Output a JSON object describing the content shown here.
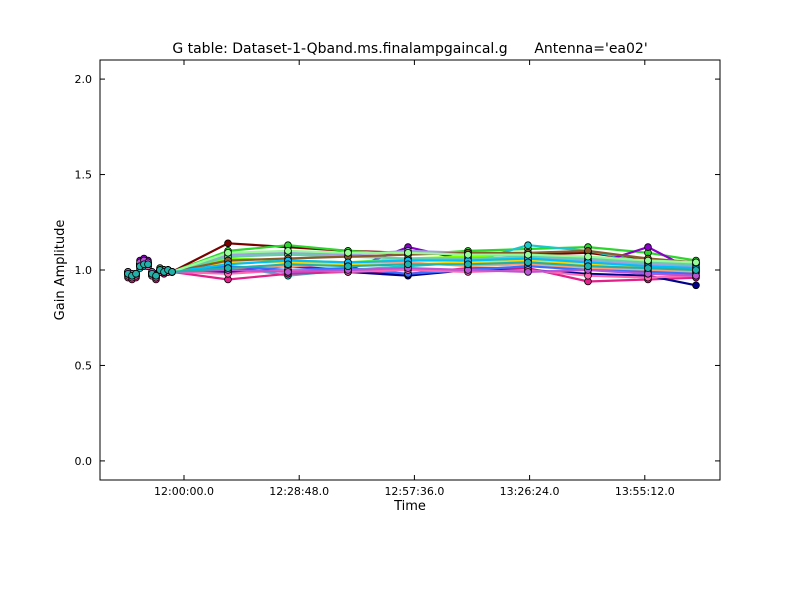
{
  "chart_data": {
    "type": "line",
    "title": "G table: Dataset-1-Qband.ms.finalampgaincal.g      Antenna='ea02'",
    "xlabel": "Time",
    "ylabel": "Gain Amplitude",
    "xlim": [
      "11:39:00.0",
      "14:14:00.0"
    ],
    "ylim": [
      -0.1,
      2.1
    ],
    "x_ticks": [
      "12:00:00.0",
      "12:28:48.0",
      "12:57:36.0",
      "13:26:24.0",
      "13:55:12.0"
    ],
    "y_ticks": [
      "0.0",
      "0.5",
      "1.0",
      "1.5",
      "2.0"
    ],
    "grid": false,
    "legend": "none",
    "x": [
      "11:46:00",
      "11:47:00",
      "11:48:00",
      "11:49:00",
      "11:50:00",
      "11:51:00",
      "11:52:00",
      "11:53:00",
      "11:54:00",
      "11:55:00",
      "11:56:00",
      "11:57:00",
      "12:11:00",
      "12:26:00",
      "12:41:00",
      "12:56:00",
      "13:11:00",
      "13:26:00",
      "13:41:00",
      "13:56:00",
      "14:08:00"
    ],
    "series": [
      {
        "color": "#7a0000",
        "values": [
          0.99,
          0.97,
          0.98,
          1.03,
          1.05,
          1.04,
          0.98,
          0.97,
          1.0,
          0.99,
          1.0,
          0.99,
          1.14,
          1.12,
          1.1,
          1.09,
          1.08,
          1.08,
          1.09,
          1.05,
          1.03
        ]
      },
      {
        "color": "#2cd62c",
        "values": [
          0.98,
          0.97,
          0.97,
          1.02,
          1.03,
          1.03,
          0.99,
          0.98,
          1.01,
          1.0,
          1.0,
          0.99,
          1.1,
          1.13,
          1.1,
          1.08,
          1.1,
          1.11,
          1.12,
          1.09,
          1.05
        ]
      },
      {
        "color": "#19c8c8",
        "values": [
          0.97,
          0.96,
          0.97,
          1.01,
          1.02,
          1.02,
          0.97,
          0.96,
          0.99,
          0.99,
          0.99,
          0.99,
          1.02,
          0.97,
          1.0,
          1.02,
          1.04,
          1.13,
          1.1,
          1.04,
          1.01
        ]
      },
      {
        "color": "#e0218a",
        "values": [
          0.96,
          0.95,
          0.96,
          1.02,
          1.04,
          1.03,
          0.97,
          0.95,
          0.99,
          0.98,
          0.99,
          0.99,
          0.95,
          0.98,
          0.99,
          0.98,
          1.01,
          1.01,
          0.94,
          0.95,
          0.96
        ]
      },
      {
        "color": "#8a00c8",
        "values": [
          0.98,
          0.97,
          0.98,
          1.05,
          1.06,
          1.05,
          0.99,
          0.97,
          1.0,
          1.0,
          1.0,
          0.99,
          1.0,
          1.02,
          1.0,
          1.12,
          1.05,
          1.05,
          1.02,
          1.12,
          0.99
        ]
      },
      {
        "color": "#00008a",
        "values": [
          0.99,
          0.97,
          0.98,
          1.02,
          1.04,
          1.04,
          0.98,
          0.96,
          1.0,
          1.0,
          1.0,
          0.99,
          0.99,
          1.0,
          0.99,
          0.97,
          1.0,
          1.0,
          0.98,
          0.97,
          0.92
        ]
      },
      {
        "color": "#7fff00",
        "values": [
          0.99,
          0.98,
          0.98,
          1.03,
          1.04,
          1.03,
          0.98,
          0.97,
          1.0,
          1.0,
          1.0,
          0.99,
          1.06,
          1.05,
          1.04,
          1.06,
          1.07,
          1.06,
          1.05,
          1.02,
          1.0
        ]
      },
      {
        "color": "#a0a0e0",
        "values": [
          0.98,
          0.97,
          0.98,
          1.03,
          1.04,
          1.03,
          0.98,
          0.97,
          1.0,
          0.99,
          1.0,
          0.99,
          1.08,
          1.09,
          1.08,
          1.1,
          1.09,
          1.07,
          1.05,
          1.03,
          1.02
        ]
      },
      {
        "color": "#ffa07a",
        "values": [
          0.98,
          0.97,
          0.97,
          1.02,
          1.03,
          1.02,
          0.98,
          0.97,
          0.99,
          0.99,
          1.0,
          0.99,
          1.01,
          1.02,
          1.03,
          1.04,
          1.02,
          1.03,
          1.01,
          1.0,
          0.99
        ]
      },
      {
        "color": "#3a6cff",
        "values": [
          0.99,
          0.98,
          0.98,
          1.03,
          1.04,
          1.03,
          0.98,
          0.97,
          1.0,
          1.0,
          1.0,
          0.99,
          1.02,
          1.0,
          1.01,
          0.98,
          1.0,
          1.02,
          1.0,
          0.99,
          0.98
        ]
      },
      {
        "color": "#ffd700",
        "values": [
          0.98,
          0.97,
          0.98,
          1.02,
          1.03,
          1.03,
          0.98,
          0.97,
          1.0,
          0.99,
          1.0,
          0.99,
          1.04,
          1.04,
          1.03,
          1.03,
          1.04,
          1.05,
          1.03,
          1.01,
          1.0
        ]
      },
      {
        "color": "#66cdaa",
        "values": [
          0.98,
          0.97,
          0.98,
          1.02,
          1.03,
          1.03,
          0.98,
          0.97,
          1.0,
          0.99,
          1.0,
          0.99,
          1.07,
          1.08,
          1.07,
          1.06,
          1.06,
          1.07,
          1.06,
          1.04,
          1.03
        ]
      },
      {
        "color": "#ff69b4",
        "values": [
          0.97,
          0.96,
          0.97,
          1.02,
          1.03,
          1.02,
          0.97,
          0.96,
          0.99,
          0.99,
          0.99,
          0.99,
          0.98,
          1.0,
          0.99,
          1.0,
          0.99,
          1.0,
          0.97,
          0.96,
          0.97
        ]
      },
      {
        "color": "#8b5a2b",
        "values": [
          0.98,
          0.97,
          0.98,
          1.03,
          1.04,
          1.03,
          0.98,
          0.97,
          1.0,
          1.0,
          1.0,
          0.99,
          1.05,
          1.06,
          1.07,
          1.08,
          1.09,
          1.09,
          1.1,
          1.06,
          1.04
        ]
      },
      {
        "color": "#00bfff",
        "values": [
          0.98,
          0.97,
          0.98,
          1.02,
          1.03,
          1.03,
          0.98,
          0.97,
          1.0,
          0.99,
          1.0,
          0.99,
          1.03,
          1.05,
          1.04,
          1.05,
          1.05,
          1.06,
          1.04,
          1.02,
          1.01
        ]
      },
      {
        "color": "#98fb98",
        "values": [
          0.98,
          0.97,
          0.98,
          1.03,
          1.04,
          1.03,
          0.98,
          0.97,
          1.0,
          1.0,
          1.0,
          0.99,
          1.09,
          1.1,
          1.09,
          1.09,
          1.08,
          1.08,
          1.07,
          1.05,
          1.04
        ]
      },
      {
        "color": "#ba55d3",
        "values": [
          0.99,
          0.98,
          0.98,
          1.04,
          1.05,
          1.04,
          0.99,
          0.97,
          1.0,
          1.0,
          1.0,
          0.99,
          1.0,
          0.99,
          1.0,
          1.01,
          1.0,
          0.99,
          1.0,
          0.98,
          0.97
        ]
      },
      {
        "color": "#20b2aa",
        "values": [
          0.98,
          0.97,
          0.98,
          1.02,
          1.03,
          1.03,
          0.98,
          0.97,
          1.0,
          0.99,
          1.0,
          0.99,
          1.01,
          1.03,
          1.02,
          1.03,
          1.03,
          1.04,
          1.02,
          1.01,
          1.0
        ]
      }
    ]
  }
}
